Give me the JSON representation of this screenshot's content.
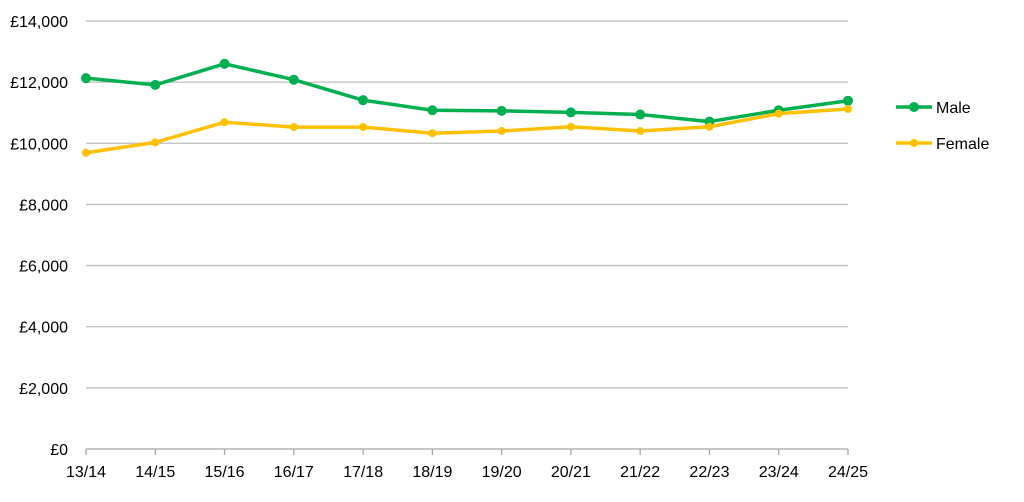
{
  "chart_data": {
    "type": "line",
    "title": "",
    "xlabel": "",
    "ylabel": "",
    "categories": [
      "13/14",
      "14/15",
      "15/16",
      "16/17",
      "17/18",
      "18/19",
      "19/20",
      "20/21",
      "21/22",
      "22/23",
      "23/24",
      "24/25"
    ],
    "ylim": [
      0,
      14000
    ],
    "yticks": [
      0,
      2000,
      4000,
      6000,
      8000,
      10000,
      12000,
      14000
    ],
    "ytick_labels": [
      "£0",
      "£2,000",
      "£4,000",
      "£6,000",
      "£8,000",
      "£10,000",
      "£12,000",
      "£14,000"
    ],
    "grid": "horizontal",
    "legend_position": "right",
    "series": [
      {
        "name": "Male",
        "color": "#00B050",
        "values": [
          12130,
          11910,
          12600,
          12080,
          11410,
          11080,
          11060,
          11010,
          10940,
          10710,
          11080,
          11390
        ]
      },
      {
        "name": "Female",
        "color": "#FFC000",
        "values": [
          9690,
          10030,
          10690,
          10530,
          10530,
          10330,
          10400,
          10540,
          10400,
          10540,
          10970,
          11120
        ]
      }
    ]
  }
}
